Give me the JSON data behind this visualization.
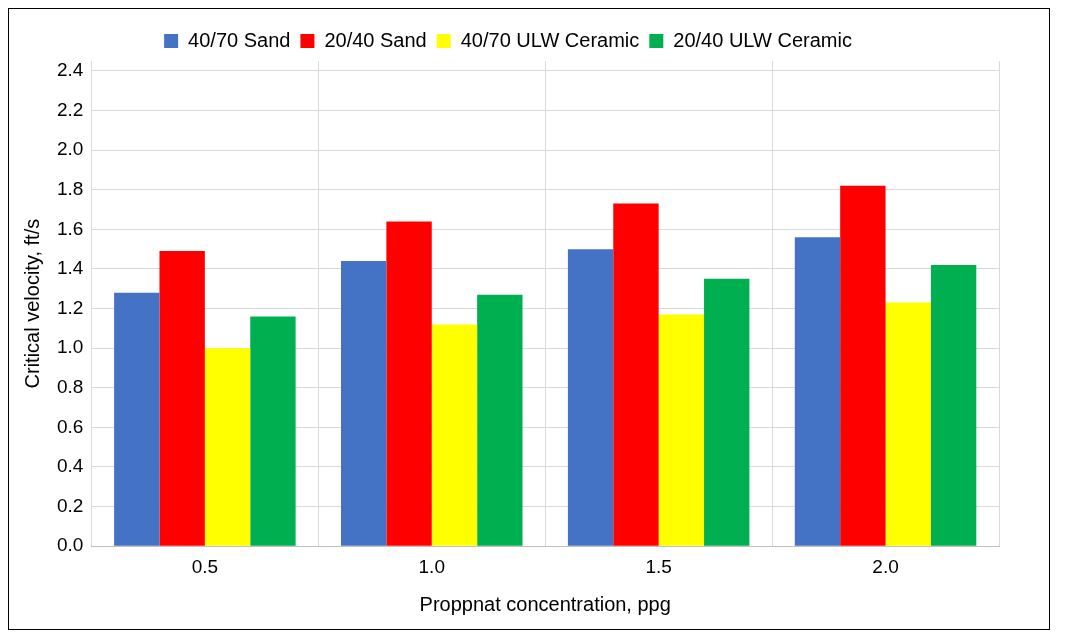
{
  "chart_data": {
    "type": "bar",
    "xlabel": "Proppnat concentration, ppg",
    "ylabel": "Critical velocity, ft/s",
    "categories": [
      "0.5",
      "1.0",
      "1.5",
      "2.0"
    ],
    "series": [
      {
        "name": "40/70 Sand",
        "color": "#4472c4",
        "values": [
          1.28,
          1.44,
          1.5,
          1.56
        ]
      },
      {
        "name": "20/40 Sand",
        "color": "#ff0000",
        "values": [
          1.49,
          1.64,
          1.73,
          1.82
        ]
      },
      {
        "name": "40/70 ULW Ceramic",
        "color": "#ffff00",
        "values": [
          1.0,
          1.12,
          1.17,
          1.23
        ]
      },
      {
        "name": "20/40 ULW Ceramic",
        "color": "#00b050",
        "values": [
          1.16,
          1.27,
          1.35,
          1.42
        ]
      }
    ],
    "ylim": [
      0,
      2.45
    ],
    "yticks": [
      {
        "value": 0,
        "label": "0.0"
      },
      0.2,
      0.4,
      0.6,
      0.8,
      {
        "value": 1,
        "label": "1.0"
      },
      1.2,
      1.4,
      1.6,
      1.8,
      {
        "value": 2,
        "label": "2.0"
      },
      2.2,
      2.4
    ],
    "grid": true,
    "legend": "top"
  }
}
